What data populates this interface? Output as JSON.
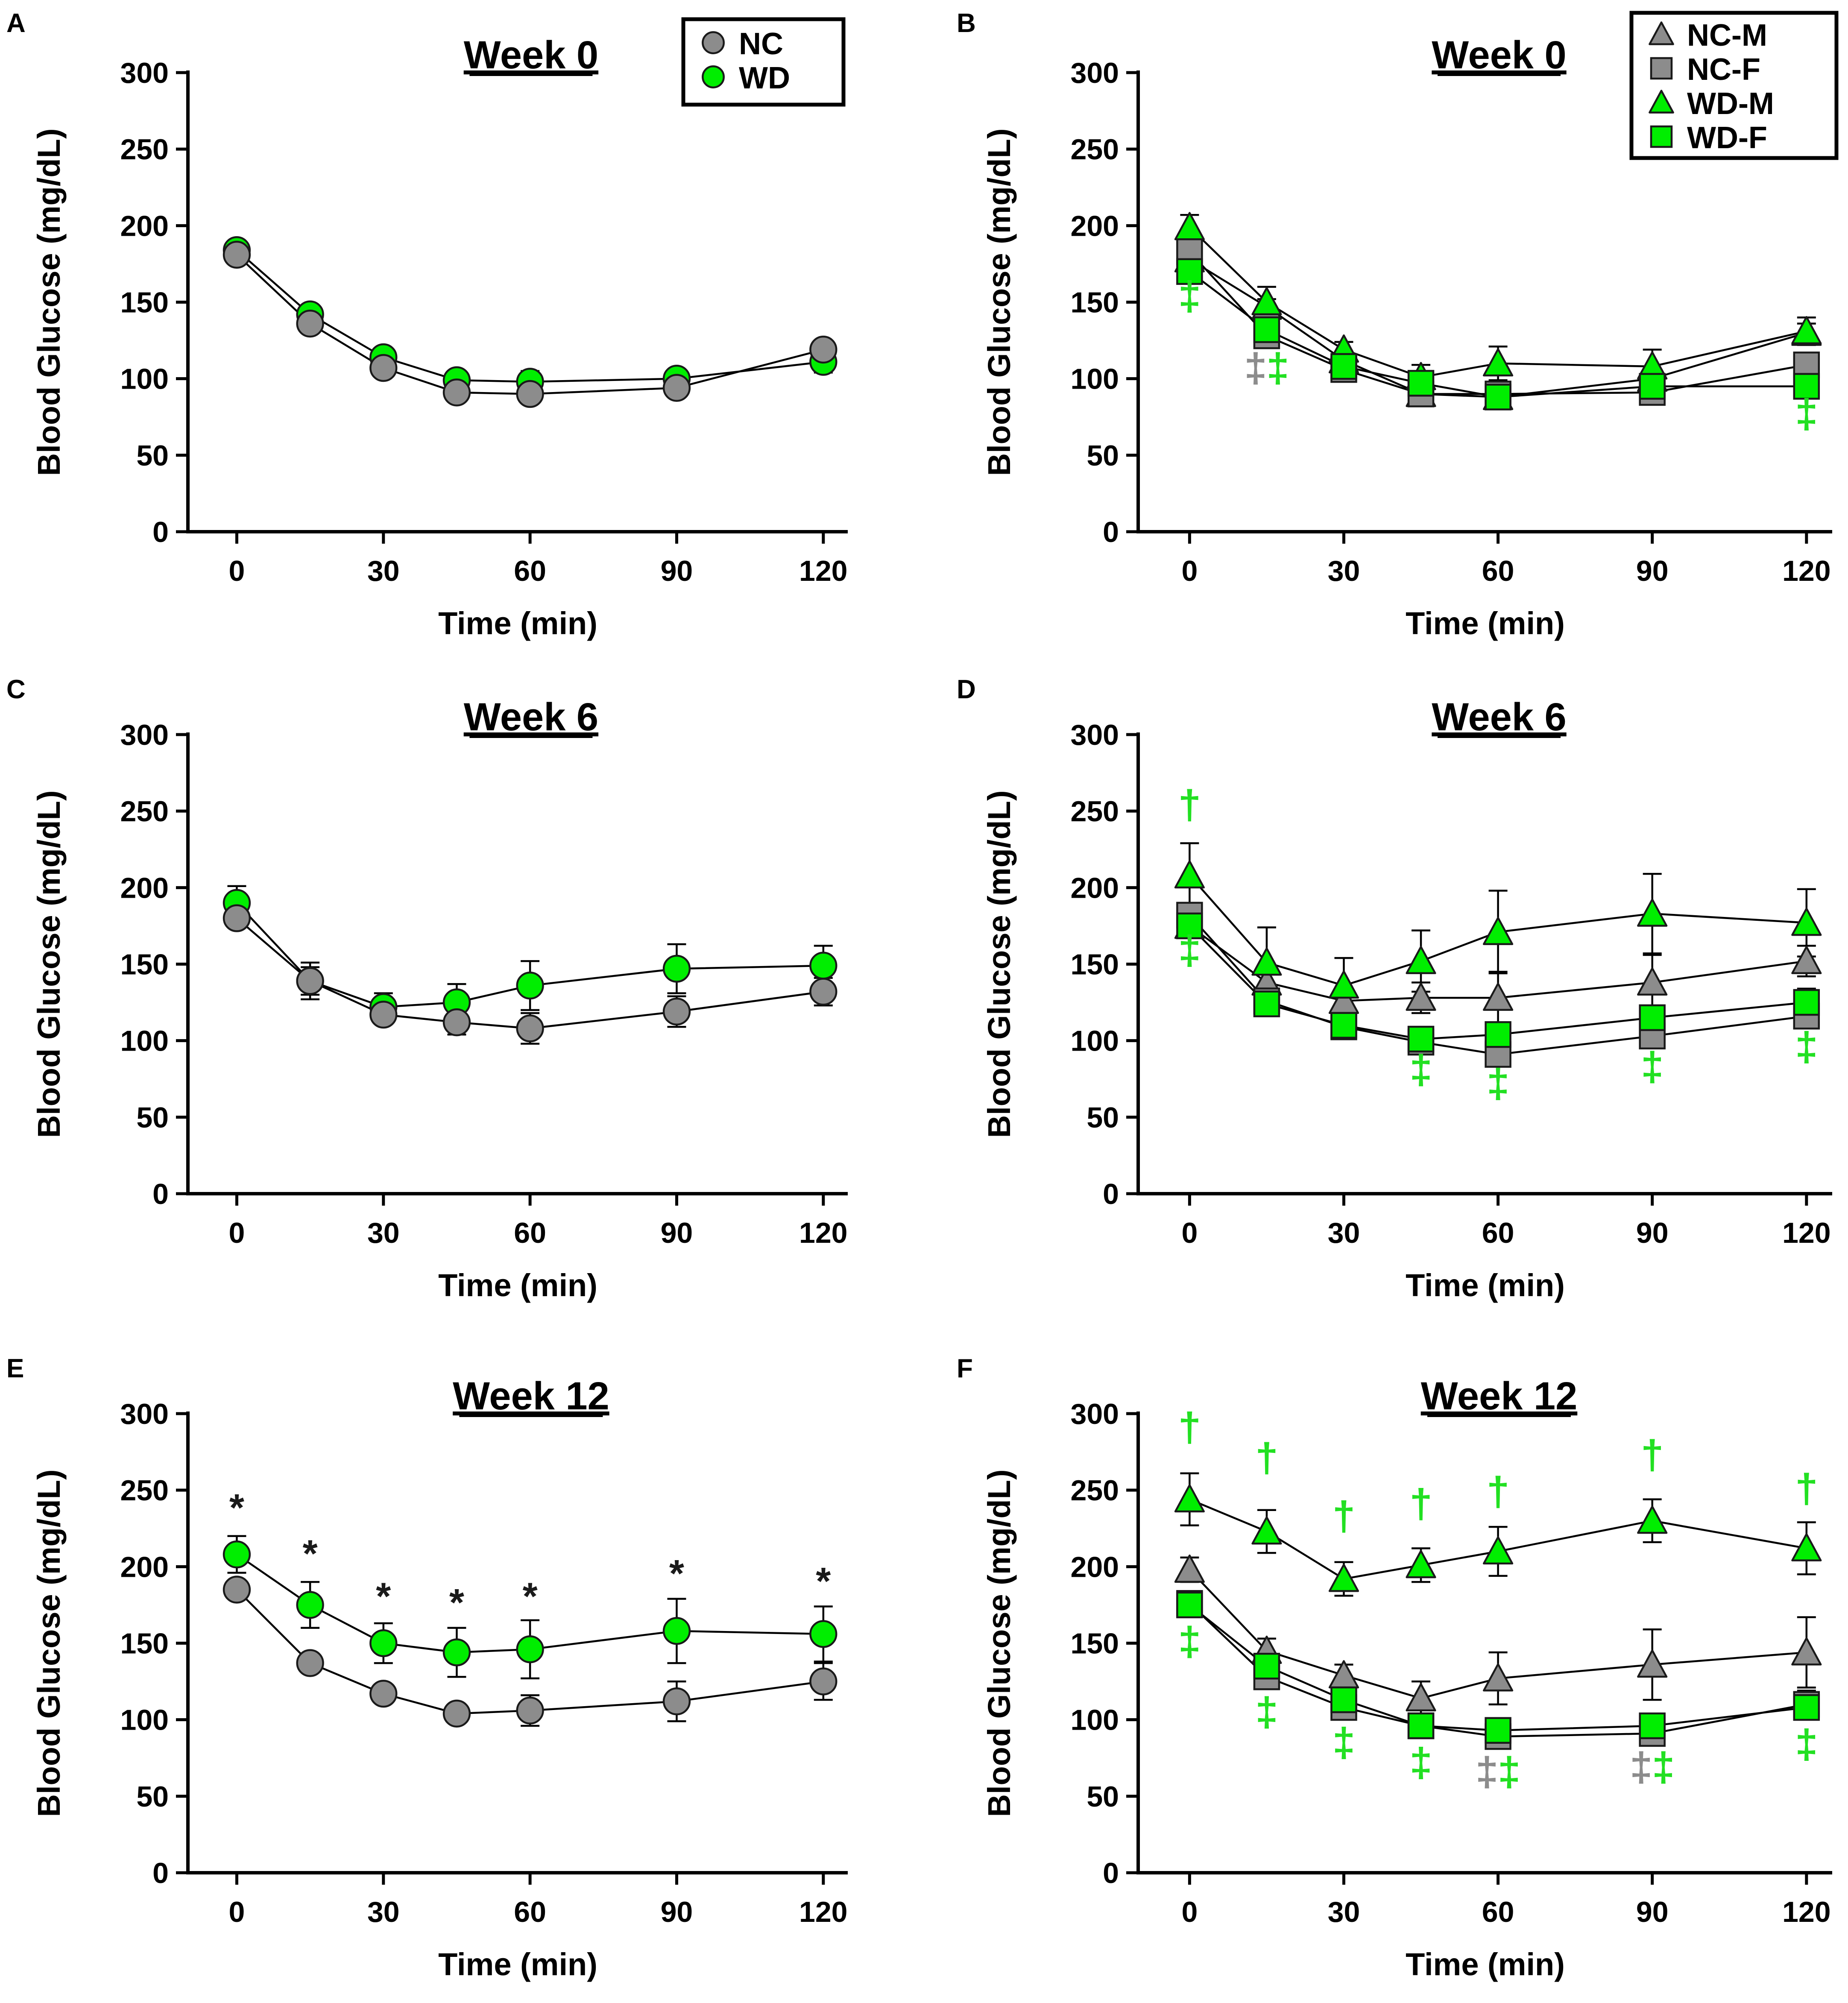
{
  "figure": {
    "x_ticks": [
      0,
      30,
      60,
      90,
      120
    ],
    "y_ticks": [
      0,
      50,
      100,
      150,
      200,
      250,
      300
    ],
    "xlabel": "Time (min)",
    "ylabel": "Blood Glucose (mg/dL)",
    "xlim": [
      -10,
      125
    ],
    "ylim": [
      0,
      300
    ]
  },
  "colors": {
    "nc": "#8c8c8c",
    "wd": "#00ee00",
    "outline": "#1a1a1a",
    "nc_symbol_text": "#8c8c8c",
    "wd_symbol_text": "#22e022"
  },
  "chart_data": [
    {
      "panel": "A",
      "type": "line",
      "title": "Week 0",
      "legend": [
        {
          "label": "NC",
          "group": "NC"
        },
        {
          "label": "WD",
          "group": "WD"
        }
      ],
      "x": [
        0,
        15,
        30,
        45,
        60,
        90,
        120
      ],
      "series": [
        {
          "name": "WD",
          "group": "WD",
          "marker": "circle",
          "values": [
            184,
            142,
            114,
            99,
            98,
            100,
            111
          ],
          "err": [
            4,
            3,
            3,
            3,
            7,
            3,
            7
          ]
        },
        {
          "name": "NC",
          "group": "NC",
          "marker": "circle",
          "values": [
            181,
            136,
            107,
            91,
            90,
            94,
            119
          ],
          "err": [
            3,
            3,
            3,
            3,
            3,
            3,
            6
          ]
        }
      ],
      "annotations": []
    },
    {
      "panel": "B",
      "type": "line",
      "title": "Week 0",
      "legend": [
        {
          "label": "NC-M",
          "group": "NC",
          "marker": "triangle"
        },
        {
          "label": "NC-F",
          "group": "NC",
          "marker": "square"
        },
        {
          "label": "WD-M",
          "group": "WD",
          "marker": "triangle"
        },
        {
          "label": "WD-F",
          "group": "WD",
          "marker": "square"
        }
      ],
      "x": [
        0,
        15,
        30,
        45,
        60,
        90,
        120
      ],
      "series": [
        {
          "name": "NC-M",
          "group": "NC",
          "marker": "triangle",
          "values": [
            178,
            147,
            112,
            90,
            88,
            100,
            130
          ],
          "err": [
            6,
            5,
            4,
            4,
            4,
            5,
            6
          ]
        },
        {
          "name": "NC-F",
          "group": "NC",
          "marker": "square",
          "values": [
            183,
            128,
            106,
            90,
            90,
            91,
            109
          ],
          "err": [
            5,
            4,
            4,
            4,
            4,
            4,
            5
          ]
        },
        {
          "name": "WD-M",
          "group": "WD",
          "marker": "triangle",
          "values": [
            199,
            150,
            119,
            101,
            110,
            108,
            131
          ],
          "err": [
            8,
            10,
            5,
            8,
            11,
            11,
            9
          ]
        },
        {
          "name": "WD-F",
          "group": "WD",
          "marker": "square",
          "values": [
            170,
            132,
            108,
            97,
            88,
            95,
            95
          ],
          "err": [
            5,
            5,
            4,
            5,
            5,
            4,
            4
          ]
        }
      ],
      "annotations": [
        {
          "x": 0,
          "y": 145,
          "symbols": [
            {
              "text": "‡",
              "color": "wd"
            }
          ]
        },
        {
          "x": 15,
          "y": 98,
          "symbols": [
            {
              "text": "‡",
              "color": "nc"
            },
            {
              "text": "‡",
              "color": "wd"
            }
          ]
        },
        {
          "x": 120,
          "y": 68,
          "symbols": [
            {
              "text": "‡",
              "color": "wd"
            }
          ]
        }
      ]
    },
    {
      "panel": "C",
      "type": "line",
      "title": "Week 6",
      "legend": [],
      "x": [
        0,
        15,
        30,
        45,
        60,
        90,
        120
      ],
      "series": [
        {
          "name": "WD",
          "group": "WD",
          "marker": "circle",
          "values": [
            190,
            139,
            122,
            125,
            136,
            147,
            149
          ],
          "err": [
            11,
            9,
            9,
            12,
            16,
            16,
            13
          ]
        },
        {
          "name": "NC",
          "group": "NC",
          "marker": "circle",
          "values": [
            180,
            139,
            117,
            112,
            108,
            119,
            132
          ],
          "err": [
            4,
            12,
            5,
            8,
            10,
            10,
            9
          ]
        }
      ],
      "annotations": []
    },
    {
      "panel": "D",
      "type": "line",
      "title": "Week 6",
      "legend": [],
      "x": [
        0,
        15,
        30,
        45,
        60,
        90,
        120
      ],
      "series": [
        {
          "name": "NC-M",
          "group": "NC",
          "marker": "triangle",
          "values": [
            175,
            138,
            126,
            128,
            128,
            138,
            152
          ],
          "err": [
            6,
            10,
            8,
            10,
            17,
            18,
            10
          ]
        },
        {
          "name": "NC-F",
          "group": "NC",
          "marker": "square",
          "values": [
            182,
            126,
            109,
            99,
            91,
            103,
            116
          ],
          "err": [
            8,
            6,
            5,
            6,
            6,
            8,
            7
          ]
        },
        {
          "name": "WD-M",
          "group": "WD",
          "marker": "triangle",
          "values": [
            208,
            151,
            136,
            152,
            171,
            183,
            177
          ],
          "err": [
            21,
            23,
            18,
            20,
            27,
            26,
            22
          ]
        },
        {
          "name": "WD-F",
          "group": "WD",
          "marker": "square",
          "values": [
            175,
            124,
            110,
            101,
            104,
            115,
            125
          ],
          "err": [
            8,
            6,
            5,
            6,
            8,
            8,
            9
          ]
        }
      ],
      "annotations": [
        {
          "x": 0,
          "y": 245,
          "symbols": [
            {
              "text": "†",
              "color": "wd"
            }
          ]
        },
        {
          "x": 0,
          "y": 150,
          "symbols": [
            {
              "text": "‡",
              "color": "wd"
            }
          ]
        },
        {
          "x": 45,
          "y": 72,
          "symbols": [
            {
              "text": "‡",
              "color": "wd"
            }
          ]
        },
        {
          "x": 60,
          "y": 63,
          "symbols": [
            {
              "text": "‡",
              "color": "wd"
            }
          ]
        },
        {
          "x": 90,
          "y": 74,
          "symbols": [
            {
              "text": "‡",
              "color": "wd"
            }
          ]
        },
        {
          "x": 120,
          "y": 87,
          "symbols": [
            {
              "text": "‡",
              "color": "wd"
            }
          ]
        }
      ]
    },
    {
      "panel": "E",
      "type": "line",
      "title": "Week 12",
      "legend": [],
      "x": [
        0,
        15,
        30,
        45,
        60,
        90,
        120
      ],
      "series": [
        {
          "name": "WD",
          "group": "WD",
          "marker": "circle",
          "values": [
            208,
            175,
            150,
            144,
            146,
            158,
            156
          ],
          "err": [
            12,
            15,
            13,
            16,
            19,
            21,
            18
          ]
        },
        {
          "name": "NC",
          "group": "NC",
          "marker": "circle",
          "values": [
            185,
            137,
            117,
            104,
            106,
            112,
            125
          ],
          "err": [
            3,
            6,
            3,
            5,
            10,
            13,
            12
          ]
        }
      ],
      "annotations": [
        {
          "x": 0,
          "y": 230,
          "symbols": [
            {
              "text": "*",
              "color": "outline"
            }
          ]
        },
        {
          "x": 15,
          "y": 200,
          "symbols": [
            {
              "text": "*",
              "color": "outline"
            }
          ]
        },
        {
          "x": 30,
          "y": 172,
          "symbols": [
            {
              "text": "*",
              "color": "outline"
            }
          ]
        },
        {
          "x": 45,
          "y": 168,
          "symbols": [
            {
              "text": "*",
              "color": "outline"
            }
          ]
        },
        {
          "x": 60,
          "y": 172,
          "symbols": [
            {
              "text": "*",
              "color": "outline"
            }
          ]
        },
        {
          "x": 90,
          "y": 187,
          "symbols": [
            {
              "text": "*",
              "color": "outline"
            }
          ]
        },
        {
          "x": 120,
          "y": 182,
          "symbols": [
            {
              "text": "*",
              "color": "outline"
            }
          ]
        }
      ]
    },
    {
      "panel": "F",
      "type": "line",
      "title": "Week 12",
      "legend": [],
      "x": [
        0,
        15,
        30,
        45,
        60,
        90,
        120
      ],
      "series": [
        {
          "name": "NC-M",
          "group": "NC",
          "marker": "triangle",
          "values": [
            198,
            145,
            129,
            114,
            127,
            136,
            144
          ],
          "err": [
            8,
            8,
            7,
            11,
            17,
            23,
            23
          ]
        },
        {
          "name": "NC-F",
          "group": "NC",
          "marker": "square",
          "values": [
            176,
            128,
            108,
            96,
            89,
            91,
            110
          ],
          "err": [
            5,
            7,
            5,
            5,
            6,
            7,
            9
          ]
        },
        {
          "name": "WD-M",
          "group": "WD",
          "marker": "triangle",
          "values": [
            244,
            223,
            192,
            201,
            210,
            230,
            212
          ],
          "err": [
            17,
            14,
            11,
            11,
            16,
            14,
            17
          ]
        },
        {
          "name": "WD-F",
          "group": "WD",
          "marker": "square",
          "values": [
            175,
            135,
            113,
            96,
            93,
            96,
            108
          ],
          "err": [
            5,
            6,
            5,
            4,
            5,
            6,
            7
          ]
        }
      ],
      "annotations": [
        {
          "x": 0,
          "y": 282,
          "symbols": [
            {
              "text": "†",
              "color": "wd"
            }
          ]
        },
        {
          "x": 0,
          "y": 142,
          "symbols": [
            {
              "text": "‡",
              "color": "wd"
            }
          ]
        },
        {
          "x": 15,
          "y": 262,
          "symbols": [
            {
              "text": "†",
              "color": "wd"
            }
          ]
        },
        {
          "x": 15,
          "y": 96,
          "symbols": [
            {
              "text": "‡",
              "color": "wd"
            }
          ]
        },
        {
          "x": 30,
          "y": 224,
          "symbols": [
            {
              "text": "†",
              "color": "wd"
            }
          ]
        },
        {
          "x": 30,
          "y": 76,
          "symbols": [
            {
              "text": "‡",
              "color": "wd"
            }
          ]
        },
        {
          "x": 45,
          "y": 232,
          "symbols": [
            {
              "text": "†",
              "color": "wd"
            }
          ]
        },
        {
          "x": 45,
          "y": 63,
          "symbols": [
            {
              "text": "‡",
              "color": "wd"
            }
          ]
        },
        {
          "x": 60,
          "y": 240,
          "symbols": [
            {
              "text": "†",
              "color": "wd"
            }
          ]
        },
        {
          "x": 60,
          "y": 57,
          "symbols": [
            {
              "text": "‡",
              "color": "nc"
            },
            {
              "text": "‡",
              "color": "wd"
            }
          ]
        },
        {
          "x": 90,
          "y": 264,
          "symbols": [
            {
              "text": "†",
              "color": "wd"
            }
          ]
        },
        {
          "x": 90,
          "y": 60,
          "symbols": [
            {
              "text": "‡",
              "color": "nc"
            },
            {
              "text": "‡",
              "color": "wd"
            }
          ]
        },
        {
          "x": 120,
          "y": 242,
          "symbols": [
            {
              "text": "†",
              "color": "wd"
            }
          ]
        },
        {
          "x": 120,
          "y": 75,
          "symbols": [
            {
              "text": "‡",
              "color": "wd"
            }
          ]
        }
      ]
    }
  ]
}
